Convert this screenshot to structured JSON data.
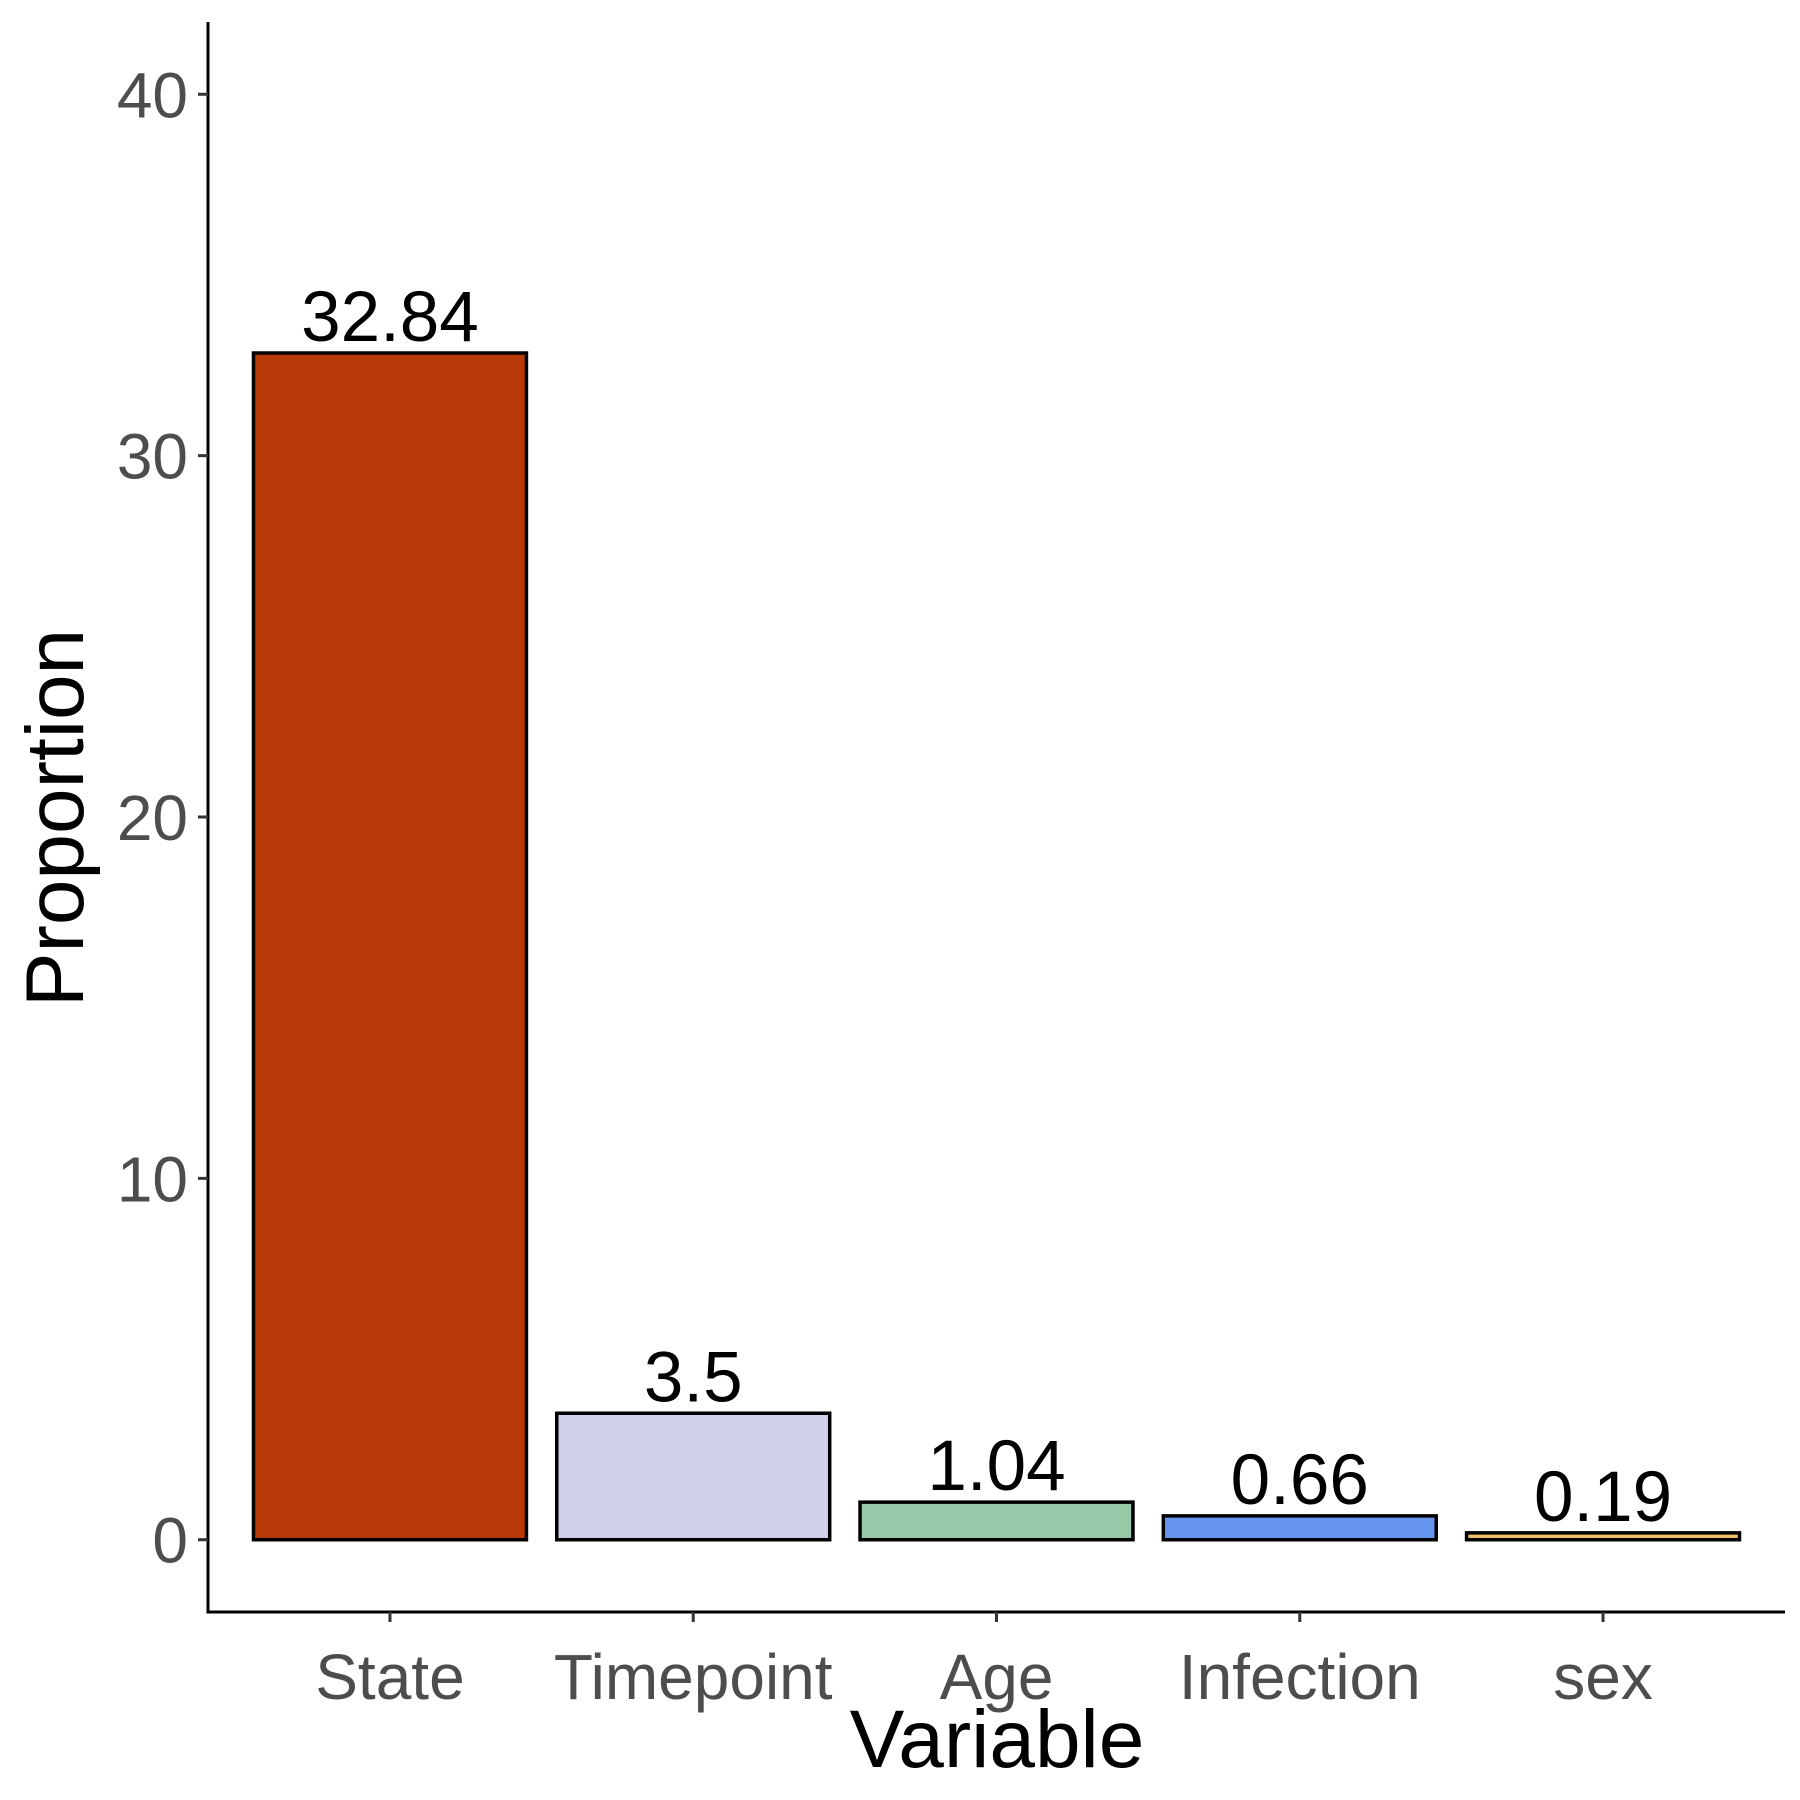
{
  "chart_data": {
    "type": "bar",
    "title": "",
    "xlabel": "Variable",
    "ylabel": "Proportion",
    "categories": [
      "State",
      "Timepoint",
      "Age",
      "Infection",
      "sex"
    ],
    "values": [
      32.84,
      3.5,
      1.04,
      0.66,
      0.19
    ],
    "value_labels": [
      "32.84",
      "3.5",
      "1.04",
      "0.66",
      "0.19"
    ],
    "colors": [
      "#B93A08",
      "#D1D1EC",
      "#97CAA9",
      "#6595EE",
      "#F2C26E"
    ],
    "yticks": [
      0,
      10,
      20,
      30,
      40
    ],
    "ytick_labels": [
      "0",
      "10",
      "20",
      "30",
      "40"
    ],
    "ylim": [
      -2,
      42
    ],
    "grid": false,
    "legend": "none"
  }
}
